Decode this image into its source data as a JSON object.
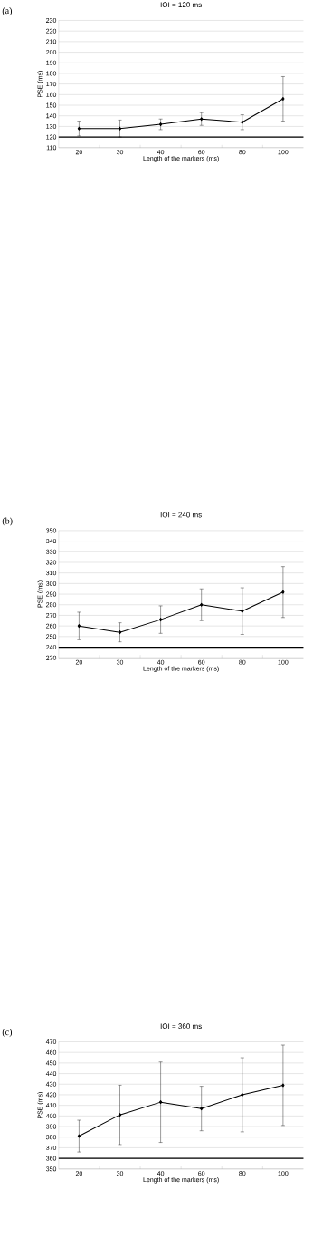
{
  "chart_data": [
    {
      "type": "line",
      "title": "IOI = 120 ms",
      "xlabel": "Length of the markers (ms)",
      "ylabel": "PSE (ms)",
      "annotations": [
        "(a)"
      ],
      "categories": [
        "20",
        "30",
        "40",
        "60",
        "80",
        "100"
      ],
      "series": [
        {
          "color": "#000000",
          "values": [
            128,
            128,
            132,
            137,
            134,
            156
          ],
          "errors": [
            7,
            8,
            5,
            6,
            7,
            21
          ]
        }
      ],
      "ylim": [
        110,
        230
      ],
      "yticks": [
        110,
        120,
        130,
        140,
        150,
        160,
        170,
        180,
        190,
        200,
        210,
        220,
        230
      ],
      "ref_lines": [
        {
          "axis": "y",
          "value": 120,
          "color": "#000000"
        }
      ],
      "grid": "y",
      "marker": "diamond",
      "line_style": "solid"
    },
    {
      "type": "line",
      "title": "IOI = 240 ms",
      "xlabel": "Length of the markers (ms)",
      "ylabel": "PSE (ms)",
      "annotations": [
        "(b)"
      ],
      "categories": [
        "20",
        "30",
        "40",
        "60",
        "80",
        "100"
      ],
      "series": [
        {
          "color": "#000000",
          "values": [
            260,
            254,
            266,
            280,
            274,
            292
          ],
          "errors": [
            13,
            9,
            13,
            15,
            22,
            24
          ]
        }
      ],
      "ylim": [
        230,
        350
      ],
      "yticks": [
        230,
        240,
        250,
        260,
        270,
        280,
        290,
        300,
        310,
        320,
        330,
        340,
        350
      ],
      "ref_lines": [
        {
          "axis": "y",
          "value": 240,
          "color": "#000000"
        }
      ],
      "grid": "y",
      "marker": "diamond",
      "line_style": "solid"
    },
    {
      "type": "line",
      "title": "IOI = 360 ms",
      "xlabel": "Length of the markers (ms)",
      "ylabel": "PSE (ms)",
      "annotations": [
        "(c)"
      ],
      "categories": [
        "20",
        "30",
        "40",
        "60",
        "80",
        "100"
      ],
      "series": [
        {
          "color": "#000000",
          "values": [
            381,
            401,
            413,
            407,
            420,
            429
          ],
          "errors": [
            15,
            28,
            38,
            21,
            35,
            38
          ]
        }
      ],
      "ylim": [
        350,
        470
      ],
      "yticks": [
        350,
        360,
        370,
        380,
        390,
        400,
        410,
        420,
        430,
        440,
        450,
        460,
        470
      ],
      "ref_lines": [
        {
          "axis": "y",
          "value": 360,
          "color": "#000000"
        }
      ],
      "grid": "y",
      "marker": "diamond",
      "line_style": "solid"
    }
  ]
}
